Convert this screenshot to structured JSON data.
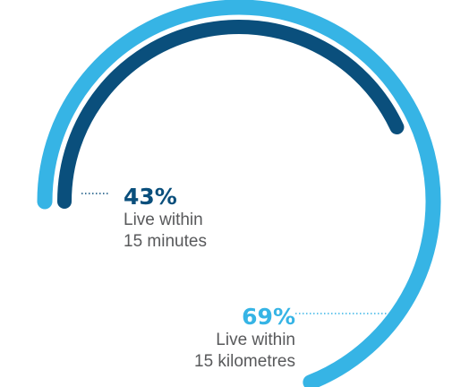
{
  "chart_data": {
    "type": "radial-bar",
    "max": 100,
    "series": [
      {
        "value": 69,
        "value_label": "69%",
        "description_lines": [
          "Live within",
          "15 kilometres"
        ],
        "color": "#36b4e5"
      },
      {
        "value": 43,
        "value_label": "43%",
        "description_lines": [
          "Live within",
          "15 minutes"
        ],
        "color": "#0a4f7c"
      }
    ]
  }
}
